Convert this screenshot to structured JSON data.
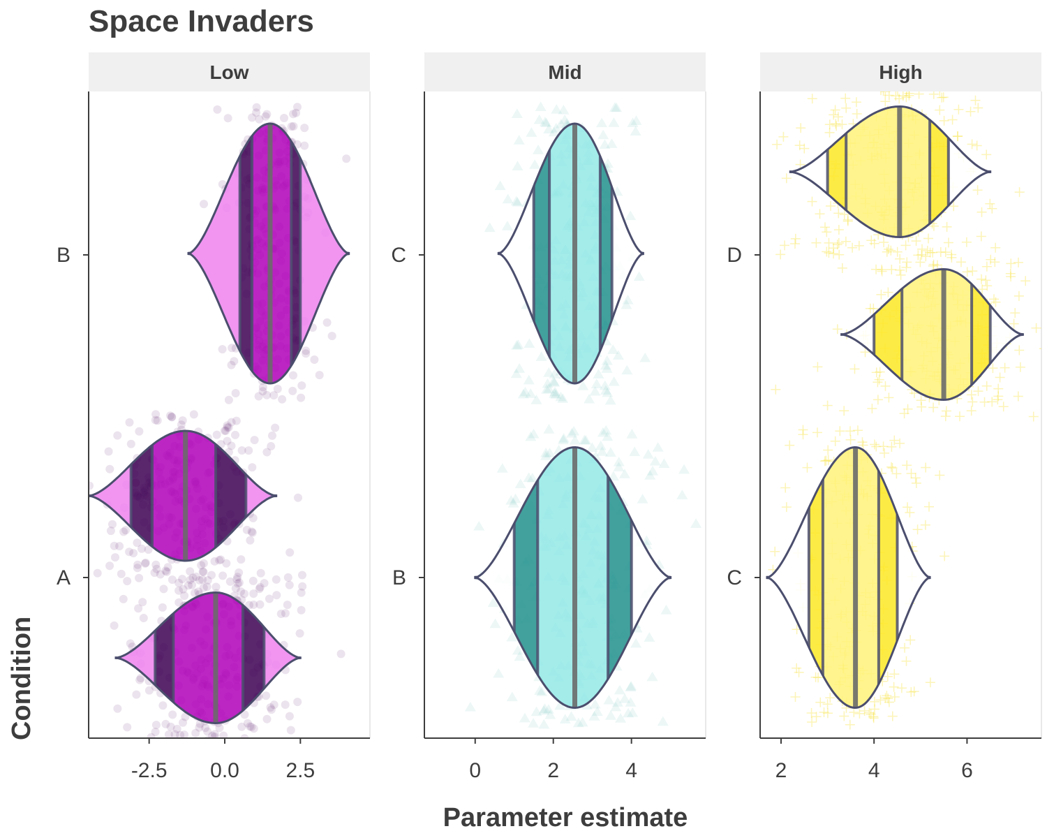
{
  "chart_data": {
    "type": "violin",
    "title": "Space Invaders",
    "xlabel": "Parameter estimate",
    "ylabel": "Condition",
    "outline_color": "#4b4e6d",
    "median_color": "#6a6a6a",
    "panels": [
      {
        "label": "Low",
        "xlim": [
          -4.5,
          4.8
        ],
        "xticks": [
          -2.5,
          0.0,
          2.5
        ],
        "xtick_labels": [
          "-2.5",
          "0.0",
          "2.5"
        ],
        "yticks": [
          "A",
          "B"
        ],
        "point_shape": "circle",
        "point_color": "#5a1a6e",
        "dark_color": "#3d0052",
        "light_color": "#b000b8",
        "tail_color": "#ee82ee",
        "violins": [
          {
            "condition": "A",
            "x_min": -4.5,
            "x_max": 1.7,
            "q": [
              -3.1,
              -2.4,
              -1.3,
              -0.3,
              0.7
            ]
          },
          {
            "condition": "A",
            "x_min": -3.6,
            "x_max": 2.5,
            "q": [
              -2.3,
              -1.7,
              -0.3,
              0.6,
              1.3
            ]
          },
          {
            "condition": "B",
            "x_min": -1.2,
            "x_max": 4.1,
            "q": [
              0.5,
              0.9,
              1.5,
              2.2,
              2.5
            ]
          }
        ]
      },
      {
        "label": "Mid",
        "xlim": [
          -1.3,
          5.9
        ],
        "xticks": [
          0,
          2,
          4
        ],
        "xtick_labels": [
          "0",
          "2",
          "4"
        ],
        "yticks": [
          "B",
          "C"
        ],
        "point_shape": "triangle",
        "point_color": "#5fbfb5",
        "dark_color": "#21908c",
        "light_color": "#93e9e6",
        "tail_color": "#ffffff",
        "violins": [
          {
            "condition": "B",
            "x_min": 0.0,
            "x_max": 5.0,
            "q": [
              1.0,
              1.6,
              2.55,
              3.4,
              4.0
            ]
          },
          {
            "condition": "C",
            "x_min": 0.6,
            "x_max": 4.3,
            "q": [
              1.5,
              1.9,
              2.55,
              3.2,
              3.5
            ]
          }
        ]
      },
      {
        "label": "High",
        "xlim": [
          1.55,
          7.6
        ],
        "xticks": [
          2,
          4,
          6
        ],
        "xtick_labels": [
          "2",
          "4",
          "6"
        ],
        "yticks": [
          "C",
          "D"
        ],
        "point_shape": "plus",
        "point_color": "#f5e032",
        "dark_color": "#fde725",
        "light_color": "#fff27a",
        "tail_color": "#ffffff",
        "violins": [
          {
            "condition": "C",
            "x_min": 1.7,
            "x_max": 5.2,
            "q": [
              2.6,
              2.9,
              3.6,
              4.1,
              4.5
            ]
          },
          {
            "condition": "D",
            "x_min": 3.3,
            "x_max": 7.2,
            "q": [
              4.0,
              4.6,
              5.5,
              6.1,
              6.5
            ]
          },
          {
            "condition": "D",
            "x_min": 2.2,
            "x_max": 6.5,
            "q": [
              3.0,
              3.4,
              4.55,
              5.2,
              5.6
            ]
          }
        ]
      }
    ]
  }
}
